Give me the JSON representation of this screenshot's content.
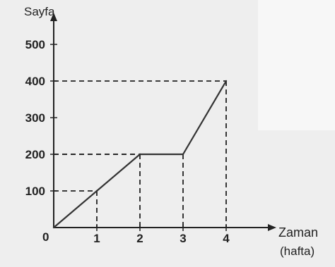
{
  "chart_data": {
    "type": "line",
    "ylabel": "Sayfa",
    "xlabel": "Zaman",
    "xlabel_unit": "(hafta)",
    "origin_label": "0",
    "xlim": [
      0,
      4
    ],
    "ylim": [
      0,
      500
    ],
    "x_ticks": [
      "1",
      "2",
      "3",
      "4"
    ],
    "y_ticks": [
      "100",
      "200",
      "300",
      "400",
      "500"
    ],
    "x": [
      0,
      1,
      2,
      3,
      4
    ],
    "values": [
      0,
      100,
      200,
      200,
      400
    ],
    "guide_lines": [
      {
        "x": 1,
        "y": 100
      },
      {
        "x": 2,
        "y": 200
      },
      {
        "x": 3,
        "y": 200
      },
      {
        "x": 4,
        "y": 400
      }
    ],
    "grid": false,
    "colors": {
      "background_panel": "#eeeeee",
      "inset_panel": "#f7f7f7",
      "line": "#333333",
      "axis": "#222222"
    }
  }
}
